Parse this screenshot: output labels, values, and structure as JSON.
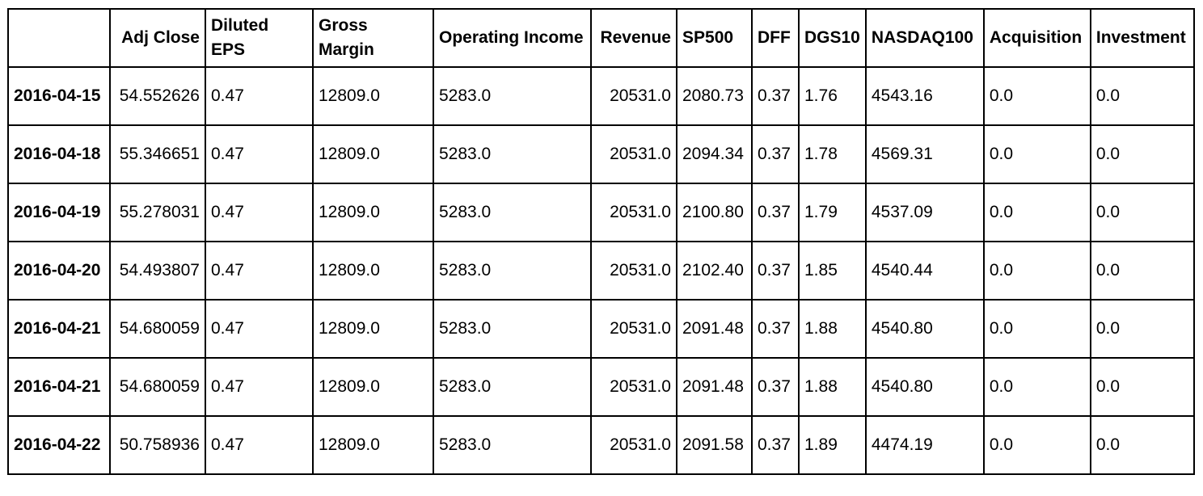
{
  "table": {
    "index_header": "",
    "columns": [
      "Adj Close",
      "Diluted EPS",
      "Gross Margin",
      "Operating Income",
      "Revenue",
      "SP500",
      "DFF",
      "DGS10",
      "NASDAQ100",
      "Acquisition",
      "Investment"
    ],
    "rows": [
      {
        "index": "2016-04-15",
        "cells": [
          "54.552626",
          "0.47",
          "12809.0",
          "5283.0",
          "20531.0",
          "2080.73",
          "0.37",
          "1.76",
          "4543.16",
          "0.0",
          "0.0"
        ]
      },
      {
        "index": "2016-04-18",
        "cells": [
          "55.346651",
          "0.47",
          "12809.0",
          "5283.0",
          "20531.0",
          "2094.34",
          "0.37",
          "1.78",
          "4569.31",
          "0.0",
          "0.0"
        ]
      },
      {
        "index": "2016-04-19",
        "cells": [
          "55.278031",
          "0.47",
          "12809.0",
          "5283.0",
          "20531.0",
          "2100.80",
          "0.37",
          "1.79",
          "4537.09",
          "0.0",
          "0.0"
        ]
      },
      {
        "index": "2016-04-20",
        "cells": [
          "54.493807",
          "0.47",
          "12809.0",
          "5283.0",
          "20531.0",
          "2102.40",
          "0.37",
          "1.85",
          "4540.44",
          "0.0",
          "0.0"
        ]
      },
      {
        "index": "2016-04-21",
        "cells": [
          "54.680059",
          "0.47",
          "12809.0",
          "5283.0",
          "20531.0",
          "2091.48",
          "0.37",
          "1.88",
          "4540.80",
          "0.0",
          "0.0"
        ]
      },
      {
        "index": "2016-04-21",
        "cells": [
          "54.680059",
          "0.47",
          "12809.0",
          "5283.0",
          "20531.0",
          "2091.48",
          "0.37",
          "1.88",
          "4540.80",
          "0.0",
          "0.0"
        ]
      },
      {
        "index": "2016-04-22",
        "cells": [
          "50.758936",
          "0.47",
          "12809.0",
          "5283.0",
          "20531.0",
          "2091.58",
          "0.37",
          "1.89",
          "4474.19",
          "0.0",
          "0.0"
        ]
      }
    ]
  }
}
